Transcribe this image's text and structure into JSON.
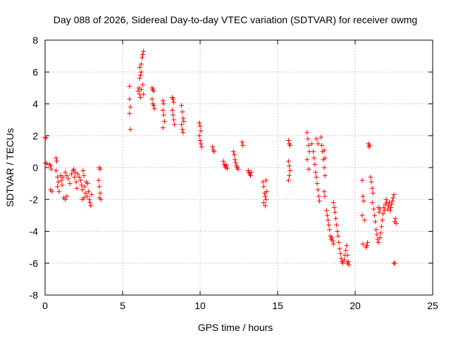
{
  "chart_data": {
    "type": "scatter",
    "title": "Day 088 of 2026, Sidereal Day-to-day VTEC variation (SDTVAR) for receiver owmg",
    "xlabel": "GPS time / hours",
    "ylabel": "SDTVAR / TECUs",
    "xlim": [
      0,
      25
    ],
    "ylim": [
      -8,
      8
    ],
    "xticks": [
      0,
      5,
      10,
      15,
      20,
      25
    ],
    "yticks": [
      -8,
      -6,
      -4,
      -2,
      0,
      2,
      4,
      6,
      8
    ],
    "grid": true,
    "marker": "plus",
    "color": "#ff0000",
    "series": [
      {
        "name": "SDTVAR",
        "points": [
          [
            0.0,
            1.9
          ],
          [
            0.05,
            1.85
          ],
          [
            0.02,
            0.3
          ],
          [
            0.1,
            0.25
          ],
          [
            0.3,
            0.2
          ],
          [
            0.35,
            0.1
          ],
          [
            0.4,
            -0.1
          ],
          [
            0.35,
            -1.4
          ],
          [
            0.45,
            -1.5
          ],
          [
            0.7,
            0.6
          ],
          [
            0.75,
            0.4
          ],
          [
            0.7,
            -0.2
          ],
          [
            0.8,
            -0.6
          ],
          [
            0.85,
            -0.9
          ],
          [
            0.8,
            -1.2
          ],
          [
            0.9,
            -1.5
          ],
          [
            1.0,
            -0.5
          ],
          [
            1.05,
            -0.8
          ],
          [
            1.1,
            -1.1
          ],
          [
            1.15,
            -0.6
          ],
          [
            1.2,
            -1.9
          ],
          [
            1.3,
            -2.0
          ],
          [
            1.4,
            -1.8
          ],
          [
            1.3,
            -0.3
          ],
          [
            1.4,
            -0.5
          ],
          [
            1.5,
            -0.7
          ],
          [
            1.6,
            -1.0
          ],
          [
            1.7,
            -0.4
          ],
          [
            1.8,
            -0.2
          ],
          [
            1.9,
            -0.6
          ],
          [
            1.85,
            -0.1
          ],
          [
            1.95,
            -0.3
          ],
          [
            2.0,
            -0.9
          ],
          [
            2.05,
            -1.3
          ],
          [
            2.1,
            -0.4
          ],
          [
            2.2,
            -0.6
          ],
          [
            2.3,
            -0.8
          ],
          [
            2.35,
            -1.1
          ],
          [
            2.4,
            -1.4
          ],
          [
            2.45,
            -0.2
          ],
          [
            2.5,
            -0.5
          ],
          [
            2.55,
            -1.2
          ],
          [
            2.6,
            -1.6
          ],
          [
            2.65,
            -0.9
          ],
          [
            2.7,
            -1.8
          ],
          [
            2.75,
            -1.0
          ],
          [
            2.8,
            -1.5
          ],
          [
            2.85,
            -2.0
          ],
          [
            2.9,
            -2.2
          ],
          [
            2.95,
            -2.4
          ],
          [
            3.0,
            -1.7
          ],
          [
            2.4,
            -2.0
          ],
          [
            2.5,
            -1.9
          ],
          [
            3.5,
            0.0
          ],
          [
            3.55,
            -0.1
          ],
          [
            3.45,
            -0.8
          ],
          [
            3.5,
            -1.2
          ],
          [
            3.55,
            -1.6
          ],
          [
            3.6,
            -2.0
          ],
          [
            3.5,
            -1.9
          ],
          [
            5.45,
            5.1
          ],
          [
            5.45,
            4.3
          ],
          [
            5.5,
            3.8
          ],
          [
            5.45,
            3.4
          ],
          [
            5.5,
            2.4
          ],
          [
            6.0,
            4.8
          ],
          [
            6.05,
            5.0
          ],
          [
            6.1,
            4.6
          ],
          [
            6.15,
            4.4
          ],
          [
            6.2,
            4.9
          ],
          [
            6.1,
            5.6
          ],
          [
            6.15,
            5.8
          ],
          [
            6.2,
            6.0
          ],
          [
            6.1,
            6.3
          ],
          [
            6.2,
            6.5
          ],
          [
            6.25,
            6.9
          ],
          [
            6.3,
            7.1
          ],
          [
            6.35,
            7.3
          ],
          [
            6.3,
            5.2
          ],
          [
            6.35,
            4.6
          ],
          [
            6.9,
            5.0
          ],
          [
            6.95,
            4.9
          ],
          [
            7.0,
            4.8
          ],
          [
            6.9,
            4.3
          ],
          [
            6.95,
            4.0
          ],
          [
            7.0,
            3.9
          ],
          [
            7.05,
            3.7
          ],
          [
            7.6,
            4.2
          ],
          [
            7.65,
            4.0
          ],
          [
            7.6,
            3.6
          ],
          [
            7.65,
            3.3
          ],
          [
            7.7,
            2.9
          ],
          [
            7.6,
            2.5
          ],
          [
            8.2,
            4.4
          ],
          [
            8.25,
            4.3
          ],
          [
            8.3,
            4.1
          ],
          [
            8.2,
            3.6
          ],
          [
            8.25,
            3.3
          ],
          [
            8.3,
            3.0
          ],
          [
            8.35,
            2.7
          ],
          [
            8.8,
            3.9
          ],
          [
            8.85,
            3.5
          ],
          [
            8.9,
            3.1
          ],
          [
            8.8,
            2.7
          ],
          [
            8.85,
            2.4
          ],
          [
            8.9,
            2.2
          ],
          [
            8.95,
            2.9
          ],
          [
            9.95,
            2.8
          ],
          [
            10.0,
            2.6
          ],
          [
            10.05,
            2.3
          ],
          [
            9.95,
            2.0
          ],
          [
            10.0,
            1.7
          ],
          [
            10.05,
            1.5
          ],
          [
            10.1,
            1.3
          ],
          [
            10.8,
            1.3
          ],
          [
            10.85,
            1.1
          ],
          [
            10.9,
            1.0
          ],
          [
            11.5,
            0.4
          ],
          [
            11.55,
            0.2
          ],
          [
            11.6,
            0.1
          ],
          [
            11.65,
            0.0
          ],
          [
            11.7,
            0.15
          ],
          [
            11.75,
            -0.05
          ],
          [
            12.15,
            1.0
          ],
          [
            12.2,
            0.8
          ],
          [
            12.25,
            0.5
          ],
          [
            12.3,
            0.3
          ],
          [
            12.35,
            0.1
          ],
          [
            12.4,
            0.0
          ],
          [
            12.45,
            -0.1
          ],
          [
            12.7,
            1.6
          ],
          [
            12.75,
            1.4
          ],
          [
            13.1,
            -0.2
          ],
          [
            13.15,
            -0.3
          ],
          [
            13.2,
            -0.4
          ],
          [
            13.25,
            -0.5
          ],
          [
            13.3,
            -0.3
          ],
          [
            14.05,
            -0.9
          ],
          [
            14.1,
            -1.2
          ],
          [
            14.15,
            -1.6
          ],
          [
            14.2,
            -1.8
          ],
          [
            14.25,
            -2.0
          ],
          [
            14.1,
            -2.2
          ],
          [
            14.2,
            -2.4
          ],
          [
            14.3,
            -1.5
          ],
          [
            14.25,
            -0.8
          ],
          [
            15.7,
            1.7
          ],
          [
            15.75,
            1.5
          ],
          [
            15.8,
            1.4
          ],
          [
            15.7,
            0.4
          ],
          [
            15.75,
            0.1
          ],
          [
            15.8,
            -0.2
          ],
          [
            15.75,
            -0.5
          ],
          [
            15.7,
            -0.8
          ],
          [
            16.9,
            2.2
          ],
          [
            16.95,
            1.8
          ],
          [
            17.0,
            1.4
          ],
          [
            17.05,
            1.0
          ],
          [
            16.9,
            0.5
          ],
          [
            17.0,
            -0.1
          ],
          [
            17.2,
            1.5
          ],
          [
            17.3,
            1.0
          ],
          [
            17.35,
            0.6
          ],
          [
            17.4,
            0.2
          ],
          [
            17.45,
            -0.3
          ],
          [
            17.5,
            -0.6
          ],
          [
            17.55,
            -1.0
          ],
          [
            17.6,
            -1.4
          ],
          [
            17.65,
            -1.8
          ],
          [
            17.7,
            -2.1
          ],
          [
            17.5,
            1.8
          ],
          [
            17.6,
            1.5
          ],
          [
            17.8,
            1.9
          ],
          [
            17.85,
            1.4
          ],
          [
            17.9,
            1.0
          ],
          [
            17.95,
            0.5
          ],
          [
            18.0,
            0.0
          ],
          [
            18.05,
            -0.5
          ],
          [
            18.0,
            -1.5
          ],
          [
            18.05,
            -1.8
          ],
          [
            18.0,
            1.1
          ],
          [
            18.05,
            0.6
          ],
          [
            18.15,
            -2.7
          ],
          [
            18.2,
            -3.0
          ],
          [
            18.25,
            -3.3
          ],
          [
            18.3,
            -3.6
          ],
          [
            18.35,
            -3.9
          ],
          [
            18.4,
            -4.3
          ],
          [
            18.45,
            -4.5
          ],
          [
            18.5,
            -4.4
          ],
          [
            18.55,
            -4.6
          ],
          [
            18.6,
            -4.8
          ],
          [
            18.6,
            -2.2
          ],
          [
            18.65,
            -2.5
          ],
          [
            18.7,
            -2.8
          ],
          [
            18.75,
            -3.2
          ],
          [
            18.8,
            -3.6
          ],
          [
            18.85,
            -4.0
          ],
          [
            18.9,
            -4.3
          ],
          [
            18.95,
            -4.7
          ],
          [
            19.0,
            -5.1
          ],
          [
            19.05,
            -5.4
          ],
          [
            19.1,
            -5.7
          ],
          [
            19.15,
            -5.9
          ],
          [
            19.2,
            -6.0
          ],
          [
            19.3,
            -5.8
          ],
          [
            19.35,
            -5.5
          ],
          [
            19.4,
            -5.2
          ],
          [
            19.45,
            -4.9
          ],
          [
            19.5,
            -5.5
          ],
          [
            19.55,
            -5.9
          ],
          [
            19.6,
            -6.1
          ],
          [
            19.5,
            -6.0
          ],
          [
            20.45,
            -0.8
          ],
          [
            20.5,
            -1.8
          ],
          [
            20.55,
            -2.1
          ],
          [
            20.45,
            -3.0
          ],
          [
            20.6,
            -3.3
          ],
          [
            20.5,
            -4.8
          ],
          [
            20.7,
            -5.0
          ],
          [
            20.75,
            -4.9
          ],
          [
            20.8,
            -4.7
          ],
          [
            20.85,
            1.5
          ],
          [
            20.9,
            1.3
          ],
          [
            20.95,
            1.4
          ],
          [
            21.0,
            -0.6
          ],
          [
            21.05,
            -0.9
          ],
          [
            21.1,
            -1.3
          ],
          [
            21.15,
            -1.6
          ],
          [
            21.1,
            -2.2
          ],
          [
            21.2,
            -2.6
          ],
          [
            21.25,
            -3.0
          ],
          [
            21.3,
            -3.4
          ],
          [
            21.35,
            -3.9
          ],
          [
            21.4,
            -4.2
          ],
          [
            21.45,
            -4.5
          ],
          [
            21.5,
            -4.7
          ],
          [
            21.6,
            -4.4
          ],
          [
            21.65,
            -4.1
          ],
          [
            21.7,
            -3.7
          ],
          [
            21.75,
            -3.3
          ],
          [
            21.8,
            -2.9
          ],
          [
            21.85,
            -2.5
          ],
          [
            21.9,
            -2.7
          ],
          [
            21.95,
            -2.3
          ],
          [
            22.0,
            -2.0
          ],
          [
            22.05,
            -2.2
          ],
          [
            22.1,
            -2.6
          ],
          [
            22.15,
            -2.4
          ],
          [
            22.2,
            -2.2
          ],
          [
            22.25,
            -2.7
          ],
          [
            22.3,
            -2.5
          ],
          [
            22.35,
            -2.3
          ],
          [
            22.4,
            -2.1
          ],
          [
            22.45,
            -1.9
          ],
          [
            22.5,
            -1.7
          ],
          [
            22.55,
            -3.4
          ],
          [
            22.6,
            -3.2
          ],
          [
            22.65,
            -3.5
          ],
          [
            22.5,
            -6.0
          ],
          [
            22.55,
            -6.0
          ],
          [
            21.5,
            -2.5
          ],
          [
            21.55,
            -2.8
          ],
          [
            21.6,
            -2.6
          ]
        ]
      }
    ]
  }
}
